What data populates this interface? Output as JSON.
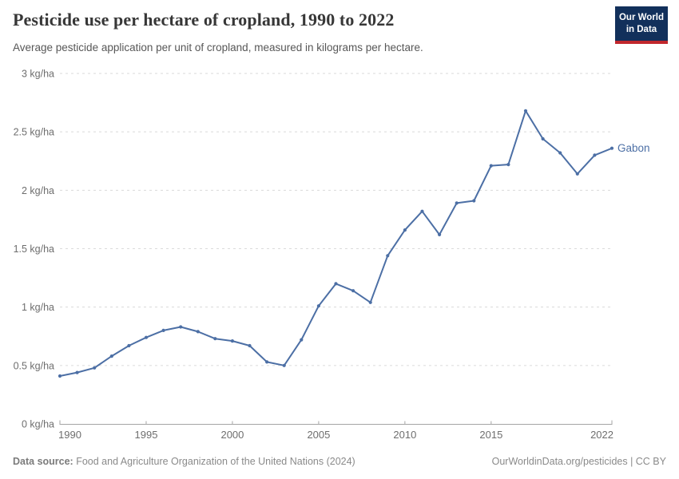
{
  "header": {
    "title": "Pesticide use per hectare of cropland, 1990 to 2022",
    "subtitle": "Average pesticide application per unit of cropland, measured in kilograms per hectare.",
    "logo": {
      "line1": "Our World",
      "line2": "in Data"
    }
  },
  "chart_data": {
    "type": "line",
    "title": "Pesticide use per hectare of cropland, 1990 to 2022",
    "xlabel": "",
    "ylabel": "kg/ha",
    "xlim": [
      1990,
      2022
    ],
    "ylim": [
      0,
      3
    ],
    "grid": "horizontal-dashed",
    "legend": "line-end-label",
    "x_ticks": [
      1990,
      1995,
      2000,
      2005,
      2010,
      2015,
      2022
    ],
    "y_ticks": [
      {
        "value": 0,
        "label": "0 kg/ha"
      },
      {
        "value": 0.5,
        "label": "0.5 kg/ha"
      },
      {
        "value": 1,
        "label": "1 kg/ha"
      },
      {
        "value": 1.5,
        "label": "1.5 kg/ha"
      },
      {
        "value": 2,
        "label": "2 kg/ha"
      },
      {
        "value": 2.5,
        "label": "2.5 kg/ha"
      },
      {
        "value": 3,
        "label": "3 kg/ha"
      }
    ],
    "series": [
      {
        "name": "Gabon",
        "color": "#4c6fa5",
        "x": [
          1990,
          1991,
          1992,
          1993,
          1994,
          1995,
          1996,
          1997,
          1998,
          1999,
          2000,
          2001,
          2002,
          2003,
          2004,
          2005,
          2006,
          2007,
          2008,
          2009,
          2010,
          2011,
          2012,
          2013,
          2014,
          2015,
          2016,
          2017,
          2018,
          2019,
          2020,
          2021,
          2022
        ],
        "values": [
          0.41,
          0.44,
          0.48,
          0.58,
          0.67,
          0.74,
          0.8,
          0.83,
          0.79,
          0.73,
          0.71,
          0.67,
          0.53,
          0.5,
          0.72,
          1.01,
          1.2,
          1.14,
          1.04,
          1.44,
          1.66,
          1.82,
          1.62,
          1.89,
          1.91,
          2.21,
          2.22,
          2.68,
          2.44,
          2.32,
          2.14,
          2.3,
          2.36
        ]
      }
    ]
  },
  "footer": {
    "source_label": "Data source:",
    "source_text": " Food and Agriculture Organization of the United Nations (2024)",
    "credit": "OurWorldinData.org/pesticides | CC BY"
  },
  "colors": {
    "grid": "#dadada",
    "axis": "#a5a5a5",
    "line": "#4c6fa5"
  }
}
